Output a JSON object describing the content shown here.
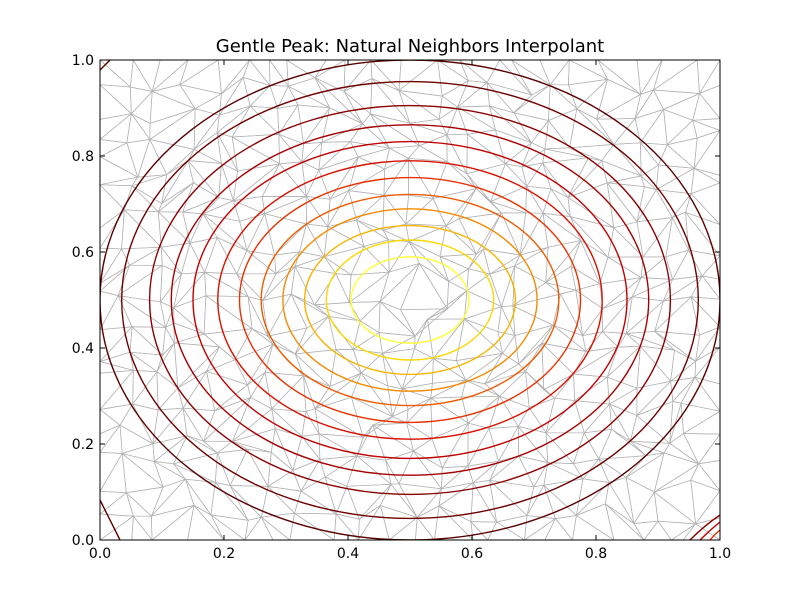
{
  "chart_data": {
    "type": "contour",
    "title": "Gentle Peak: Natural Neighbors Interpolant",
    "xlabel": "",
    "ylabel": "",
    "xlim": [
      0.0,
      1.0
    ],
    "ylim": [
      0.0,
      1.0
    ],
    "xticks": [
      "0.0",
      "0.2",
      "0.4",
      "0.6",
      "0.8",
      "1.0"
    ],
    "yticks": [
      "0.0",
      "0.2",
      "0.4",
      "0.6",
      "0.8",
      "1.0"
    ],
    "grid": false,
    "legend": "none",
    "peak_center": [
      0.5,
      0.5
    ],
    "overlay": "triangulation mesh",
    "contour_levels": [
      {
        "level_rank": 1,
        "color": "#5a0000",
        "rx": 0.5,
        "ry": 0.5
      },
      {
        "level_rank": 2,
        "color": "#6e0000",
        "rx": 0.465,
        "ry": 0.455
      },
      {
        "level_rank": 3,
        "color": "#8a0000",
        "rx": 0.42,
        "ry": 0.405
      },
      {
        "level_rank": 4,
        "color": "#a50000",
        "rx": 0.385,
        "ry": 0.365
      },
      {
        "level_rank": 5,
        "color": "#c00000",
        "rx": 0.35,
        "ry": 0.33
      },
      {
        "level_rank": 6,
        "color": "#d81000",
        "rx": 0.31,
        "ry": 0.29
      },
      {
        "level_rank": 7,
        "color": "#e83000",
        "rx": 0.275,
        "ry": 0.255
      },
      {
        "level_rank": 8,
        "color": "#f05a00",
        "rx": 0.24,
        "ry": 0.22
      },
      {
        "level_rank": 9,
        "color": "#f58a00",
        "rx": 0.205,
        "ry": 0.19
      },
      {
        "level_rank": 10,
        "color": "#f8b400",
        "rx": 0.17,
        "ry": 0.155
      },
      {
        "level_rank": 11,
        "color": "#fbd800",
        "rx": 0.135,
        "ry": 0.125
      },
      {
        "level_rank": 12,
        "color": "#ffff33",
        "rx": 0.095,
        "ry": 0.09
      }
    ],
    "mesh_color": "#b3b3b3",
    "frame_color": "#000000"
  }
}
